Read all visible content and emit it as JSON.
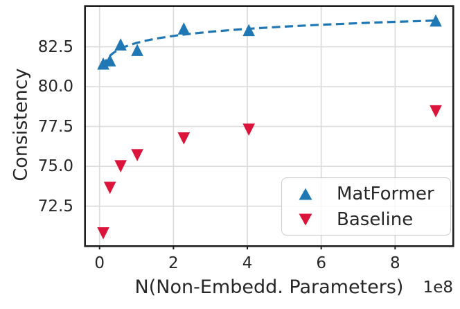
{
  "chart_data": {
    "type": "scatter",
    "xlabel": "N(Non-Embedd. Parameters)",
    "ylabel": "Consistency",
    "x_offset_label": "1e8",
    "x_scale_factor": 100000000,
    "x": [
      0.1,
      0.28,
      0.57,
      1.02,
      2.28,
      4.04,
      9.1
    ],
    "series": [
      {
        "name": "MatFormer",
        "marker": "triangle-up",
        "color": "#1f77b4",
        "values": [
          81.45,
          81.65,
          82.65,
          82.3,
          83.65,
          83.55,
          84.15
        ]
      },
      {
        "name": "Baseline",
        "marker": "triangle-down",
        "color": "#dc143c",
        "values": [
          70.8,
          73.65,
          75.0,
          75.7,
          76.75,
          77.3,
          78.45
        ]
      }
    ],
    "trend_line": {
      "series": "MatFormer",
      "style": "dashed",
      "color": "#1f77b4",
      "fit": "y = a + b*ln(x)",
      "a": 82.74,
      "b": 0.637,
      "x_start": 0.095,
      "x_end": 9.1
    },
    "xticks": [
      0,
      2,
      4,
      6,
      8
    ],
    "xtick_labels": [
      "0",
      "2",
      "4",
      "6",
      "8"
    ],
    "yticks": [
      72.5,
      75.0,
      77.5,
      80.0,
      82.5
    ],
    "ytick_labels": [
      "72.5",
      "75.0",
      "77.5",
      "80.0",
      "82.5"
    ],
    "xlim": [
      -0.37,
      9.55
    ],
    "ylim": [
      70.05,
      85.0
    ],
    "grid": true,
    "grid_color": "#dcdcdc",
    "spine_color": "#1f1f1f",
    "text_color": "#262626",
    "legend": {
      "position": "lower right",
      "entries": [
        "MatFormer",
        "Baseline"
      ]
    }
  }
}
